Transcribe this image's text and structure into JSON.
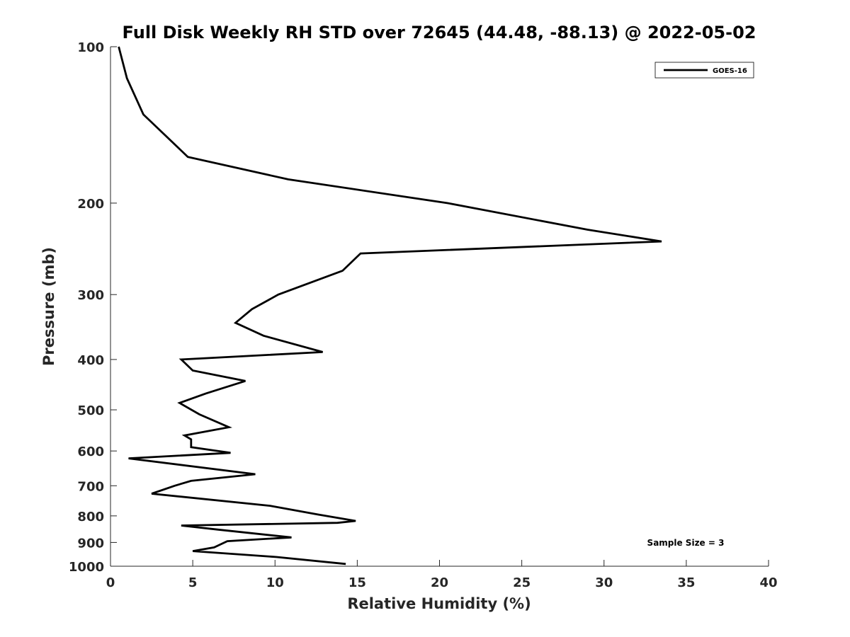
{
  "chart_data": {
    "type": "line",
    "title": "Full Disk Weekly RH STD over 72645 (44.48, -88.13) @ 2022-05-02",
    "xlabel": "Relative Humidity (%)",
    "ylabel": "Pressure (mb)",
    "xlim": [
      0,
      40
    ],
    "ylim": [
      100,
      1000
    ],
    "yscale": "log",
    "yreversed": true,
    "xticks": [
      0,
      5,
      10,
      15,
      20,
      25,
      30,
      35,
      40
    ],
    "yticks": [
      100,
      200,
      300,
      400,
      500,
      600,
      700,
      800,
      900,
      1000
    ],
    "legend_position": "top-right",
    "annotation": "Sample Size = 3",
    "series": [
      {
        "name": "GOES-16",
        "color": "#000000",
        "x": [
          0.5,
          1.0,
          2.0,
          4.7,
          10.8,
          20.5,
          29.0,
          33.5,
          15.2,
          14.1,
          10.2,
          8.6,
          7.6,
          9.3,
          12.9,
          4.3,
          5.0,
          8.2,
          5.8,
          4.2,
          5.4,
          7.2,
          4.5,
          4.9,
          4.9,
          7.3,
          1.1,
          8.8,
          4.9,
          3.9,
          2.5,
          9.7,
          12.6,
          14.9,
          13.8,
          4.3,
          6.5,
          11.0,
          7.1,
          6.3,
          5.0,
          10.1,
          14.3
        ],
        "y": [
          100,
          115,
          135,
          163,
          180,
          200,
          225,
          237,
          250,
          270,
          300,
          320,
          340,
          360,
          387,
          400,
          420,
          440,
          465,
          485,
          510,
          540,
          560,
          570,
          590,
          605,
          620,
          665,
          685,
          700,
          725,
          765,
          795,
          818,
          825,
          835,
          850,
          880,
          895,
          920,
          935,
          960,
          990
        ]
      }
    ]
  }
}
